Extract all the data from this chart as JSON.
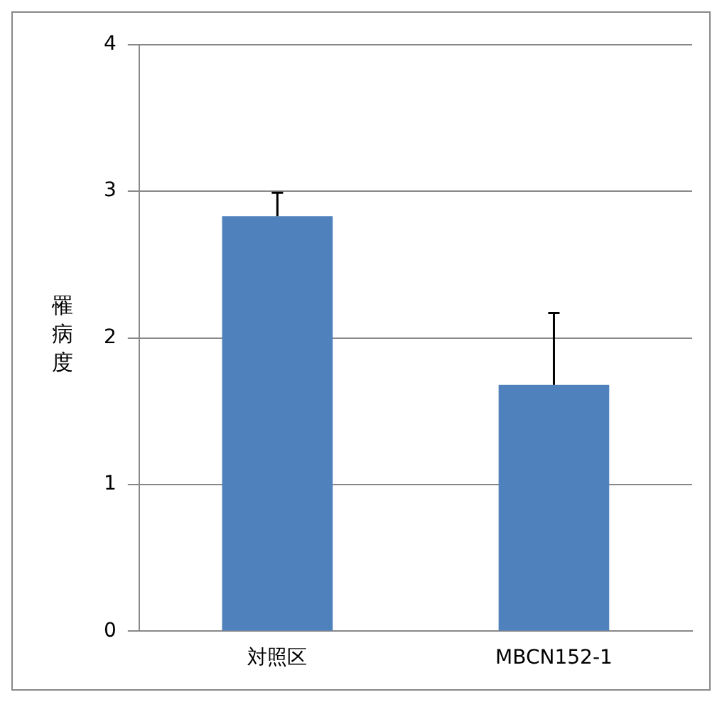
{
  "chart_data": {
    "type": "bar",
    "ylabel": "罹病度",
    "categories": [
      "対照区",
      "MBCN152-1"
    ],
    "values": [
      2.83,
      1.68
    ],
    "errors": [
      [
        2.83,
        2.99
      ],
      [
        1.68,
        2.17
      ]
    ],
    "color": "#4f81bd",
    "ylim": [
      0,
      4
    ],
    "yticks": [
      0,
      1,
      2,
      3,
      4
    ],
    "grid": "y"
  }
}
